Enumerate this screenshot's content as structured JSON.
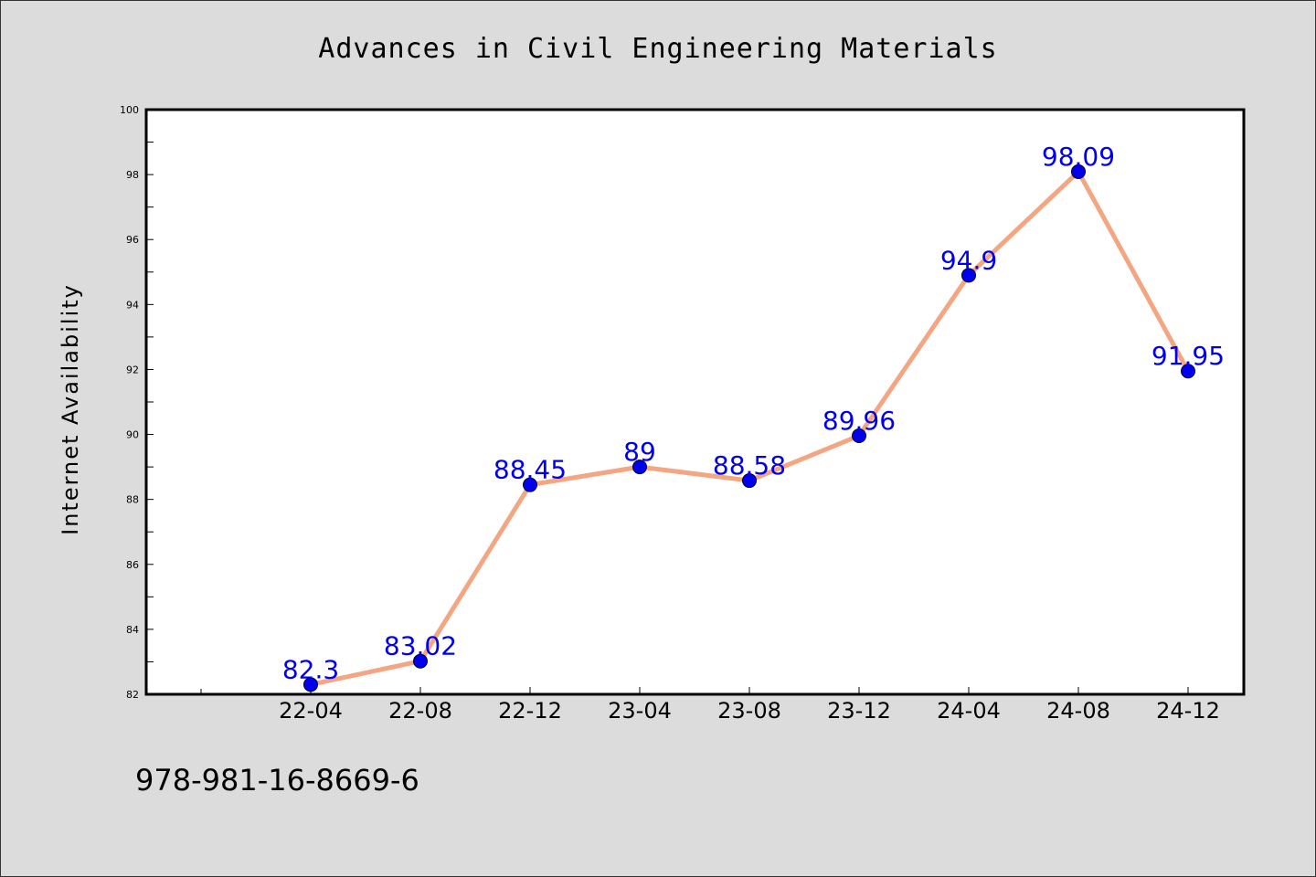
{
  "chart_data": {
    "type": "line",
    "title": "Advances in Civil Engineering Materials",
    "xlabel": "",
    "ylabel": "Internet Availability",
    "categories": [
      "22-04",
      "22-08",
      "22-12",
      "23-04",
      "23-08",
      "23-12",
      "24-04",
      "24-08",
      "24-12"
    ],
    "series": [
      {
        "values": [
          82.3,
          83.02,
          88.45,
          89,
          88.58,
          89.96,
          94.9,
          98.09,
          91.95
        ],
        "labels": [
          "82.3",
          "83.02",
          "88.45",
          "89",
          "88.58",
          "89.96",
          "94.9",
          "98.09",
          "91.95"
        ],
        "line_color": "#f4a582",
        "marker_color": "#0000ee",
        "label_color": "#0000ee"
      }
    ],
    "ylim": [
      82,
      100
    ],
    "yticks": [
      82,
      84,
      86,
      88,
      90,
      92,
      94,
      96,
      98,
      100
    ],
    "grid": false,
    "legend": "none"
  },
  "footer": {
    "isbn": "978-981-16-8669-6"
  },
  "colors": {
    "background": "#dcdcdc",
    "plot_area": "#ffffff",
    "axis": "#000000"
  }
}
